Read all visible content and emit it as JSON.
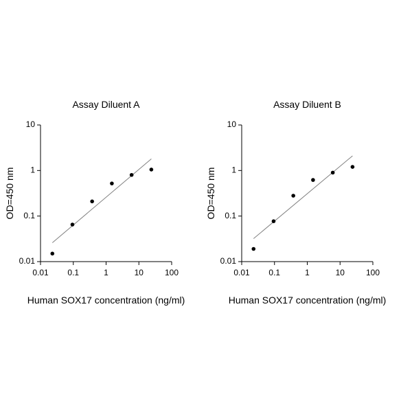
{
  "chart_data": [
    {
      "type": "scatter",
      "title": "Assay Diluent A",
      "x_label": "Human SOX17 concentration (ng/ml)",
      "y_label": "OD=450 nm",
      "log_scale": true,
      "color": "#000000",
      "line_color": "#808080",
      "x": [
        0.023,
        0.094,
        0.375,
        1.5,
        6,
        24
      ],
      "values": [
        0.015,
        0.065,
        0.21,
        0.52,
        0.8,
        1.05
      ],
      "trend_line": {
        "x": [
          0.023,
          24
        ],
        "y": [
          0.026,
          1.8
        ]
      },
      "xlim": [
        0.01,
        100
      ],
      "ylim": [
        0.01,
        10
      ],
      "xticks": [
        0.01,
        0.1,
        1,
        10,
        100
      ],
      "yticks": [
        0.01,
        0.1,
        1,
        10
      ]
    },
    {
      "type": "scatter",
      "title": "Assay Diluent B",
      "x_label": "Human SOX17 concentration (ng/ml)",
      "y_label": "OD=450 nm",
      "log_scale": true,
      "color": "#000000",
      "line_color": "#808080",
      "x": [
        0.023,
        0.094,
        0.375,
        1.5,
        6,
        24
      ],
      "values": [
        0.019,
        0.077,
        0.28,
        0.62,
        0.9,
        1.2
      ],
      "trend_line": {
        "x": [
          0.023,
          24
        ],
        "y": [
          0.032,
          2.1
        ]
      },
      "xlim": [
        0.01,
        100
      ],
      "ylim": [
        0.01,
        10
      ],
      "xticks": [
        0.01,
        0.1,
        1,
        10,
        100
      ],
      "yticks": [
        0.01,
        0.1,
        1,
        10
      ]
    }
  ]
}
